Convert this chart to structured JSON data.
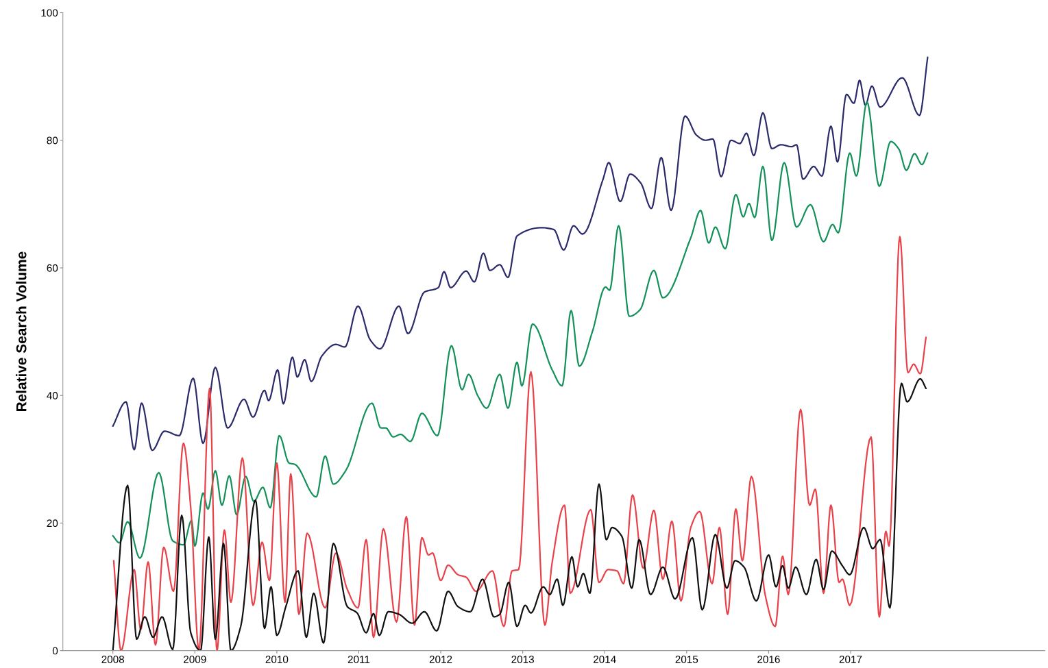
{
  "chart_data": {
    "type": "line",
    "ylabel": "Relative Search Volume",
    "xlim": [
      2007.39,
      2019.37
    ],
    "ylim": [
      0,
      100
    ],
    "xticks": [
      2008,
      2009,
      2010,
      2011,
      2012,
      2013,
      2014,
      2015,
      2016,
      2017
    ],
    "yticks": [
      0,
      20,
      40,
      60,
      80,
      100
    ],
    "grid": false,
    "marker": "none",
    "line_style": "solid",
    "series": [
      {
        "color": "#2b2b6b",
        "x": [
          2008.0,
          2008.16,
          2008.26,
          2008.35,
          2008.48,
          2008.63,
          2008.81,
          2008.98,
          2009.1,
          2009.25,
          2009.4,
          2009.6,
          2009.71,
          2009.85,
          2009.9,
          2010.01,
          2010.08,
          2010.19,
          2010.25,
          2010.34,
          2010.42,
          2010.55,
          2010.72,
          2010.83,
          2010.99,
          2011.14,
          2011.26,
          2011.49,
          2011.6,
          2011.8,
          2011.97,
          2012.04,
          2012.12,
          2012.31,
          2012.41,
          2012.52,
          2012.6,
          2012.72,
          2012.82,
          2012.93,
          2013.23,
          2013.38,
          2013.5,
          2013.62,
          2013.73,
          2013.98,
          2014.05,
          2014.19,
          2014.31,
          2014.44,
          2014.57,
          2014.69,
          2014.81,
          2014.98,
          2015.12,
          2015.23,
          2015.32,
          2015.42,
          2015.54,
          2015.65,
          2015.73,
          2015.82,
          2015.93,
          2016.04,
          2016.15,
          2016.28,
          2016.34,
          2016.42,
          2016.55,
          2016.65,
          2016.76,
          2016.84,
          2016.95,
          2017.04,
          2017.11,
          2017.18,
          2017.26,
          2017.36,
          2017.63,
          2017.84,
          2017.94
        ],
        "values": [
          35.2,
          39,
          31.5,
          38.8,
          31.4,
          34.4,
          33.7,
          42.7,
          32.5,
          44.4,
          34.9,
          39.4,
          36.6,
          40.8,
          39.2,
          44,
          38.7,
          46,
          42.9,
          45.6,
          42.2,
          46.2,
          48,
          47.6,
          54,
          48.7,
          47.3,
          54,
          49.7,
          56.2,
          56.9,
          59.4,
          56.9,
          59.5,
          57.8,
          62.3,
          59.6,
          60.5,
          58.5,
          65,
          66.3,
          66,
          62.8,
          66.6,
          65.3,
          73.9,
          76.5,
          70.4,
          74.7,
          73.3,
          69.3,
          77.3,
          69,
          83.8,
          80.8,
          80,
          80.2,
          74.3,
          80,
          79.5,
          81.1,
          77.6,
          84.3,
          78.7,
          79.3,
          79,
          79.3,
          73.9,
          75.9,
          74.4,
          82.2,
          76.6,
          87.2,
          85.8,
          89.4,
          85.5,
          88.5,
          85.2,
          89.8,
          83.9,
          93
        ]
      },
      {
        "color": "#14915a",
        "x": [
          2008.0,
          2008.08,
          2008.18,
          2008.33,
          2008.56,
          2008.73,
          2008.86,
          2008.96,
          2009.0,
          2009.1,
          2009.16,
          2009.25,
          2009.33,
          2009.42,
          2009.51,
          2009.62,
          2009.72,
          2009.83,
          2009.92,
          2010.03,
          2010.15,
          2010.22,
          2010.48,
          2010.59,
          2010.69,
          2010.84,
          2011.16,
          2011.27,
          2011.33,
          2011.42,
          2011.51,
          2011.63,
          2011.77,
          2011.96,
          2012.13,
          2012.26,
          2012.34,
          2012.45,
          2012.56,
          2012.72,
          2012.82,
          2012.93,
          2012.99,
          2013.12,
          2013.36,
          2013.48,
          2013.59,
          2013.69,
          2013.85,
          2014.01,
          2014.06,
          2014.17,
          2014.3,
          2014.43,
          2014.6,
          2014.71,
          2015.05,
          2015.17,
          2015.27,
          2015.35,
          2015.47,
          2015.6,
          2015.69,
          2015.76,
          2015.83,
          2015.93,
          2016.04,
          2016.19,
          2016.34,
          2016.51,
          2016.67,
          2016.78,
          2016.85,
          2016.99,
          2017.07,
          2017.2,
          2017.35,
          2017.49,
          2017.59,
          2017.68,
          2017.78,
          2017.87,
          2017.94
        ],
        "values": [
          18,
          16.9,
          20.2,
          14.5,
          27.9,
          17.2,
          16.6,
          20.4,
          16.4,
          24.7,
          22.2,
          28.2,
          22.8,
          27.4,
          21.3,
          27.3,
          23.4,
          25.6,
          22.4,
          33.7,
          29.4,
          29.2,
          24.1,
          30.5,
          26.1,
          28.2,
          38.8,
          34.9,
          34.9,
          33.5,
          33.9,
          32.8,
          37.2,
          33.7,
          47.8,
          40.9,
          43.3,
          40,
          38,
          43.3,
          38,
          45.2,
          41.5,
          51.2,
          44,
          41.5,
          53.3,
          44.6,
          50,
          57,
          56.5,
          66.6,
          52.4,
          53.4,
          59.6,
          55.3,
          64.7,
          69,
          63.9,
          66.4,
          63,
          71.5,
          68,
          70.1,
          67.9,
          75.9,
          64.3,
          76.5,
          66.4,
          69.9,
          64.1,
          66.8,
          65.5,
          78,
          74.4,
          86,
          72.8,
          79.8,
          78.6,
          75.3,
          77.9,
          76.2,
          78
        ]
      },
      {
        "color": "#e8424a",
        "x": [
          2008.01,
          2008.1,
          2008.26,
          2008.34,
          2008.43,
          2008.52,
          2008.62,
          2008.74,
          2008.86,
          2008.95,
          2009.05,
          2009.18,
          2009.27,
          2009.36,
          2009.44,
          2009.58,
          2009.71,
          2009.82,
          2009.91,
          2010.0,
          2010.1,
          2010.17,
          2010.27,
          2010.37,
          2010.59,
          2010.72,
          2010.86,
          2010.99,
          2011.09,
          2011.18,
          2011.3,
          2011.46,
          2011.58,
          2011.68,
          2011.77,
          2011.85,
          2011.9,
          2012.0,
          2012.09,
          2012.21,
          2012.31,
          2012.43,
          2012.63,
          2012.77,
          2012.87,
          2012.95,
          2013.1,
          2013.27,
          2013.36,
          2013.51,
          2013.58,
          2013.83,
          2013.93,
          2014.04,
          2014.15,
          2014.23,
          2014.34,
          2014.47,
          2014.6,
          2014.71,
          2014.82,
          2014.93,
          2015.05,
          2015.16,
          2015.31,
          2015.4,
          2015.5,
          2015.6,
          2015.68,
          2015.79,
          2015.96,
          2016.08,
          2016.17,
          2016.24,
          2016.39,
          2016.5,
          2016.57,
          2016.67,
          2016.76,
          2016.86,
          2016.9,
          2016.99,
          2017.25,
          2017.35,
          2017.43,
          2017.47,
          2017.6,
          2017.7,
          2017.77,
          2017.85,
          2017.92
        ],
        "values": [
          14.1,
          0,
          12.7,
          3.3,
          13.9,
          0.9,
          16.2,
          9.3,
          32.5,
          22.4,
          0,
          41.1,
          0,
          18.9,
          7.6,
          30.2,
          7.1,
          17,
          11,
          29.4,
          7.6,
          27.7,
          5.7,
          18.4,
          6.7,
          15.3,
          9.6,
          6.7,
          17.4,
          2.1,
          19.1,
          4.5,
          21,
          4,
          17.7,
          15,
          15.3,
          11,
          13.4,
          11.9,
          11.5,
          9.3,
          12.5,
          3.8,
          12.5,
          12.7,
          43.7,
          4,
          13.9,
          22.8,
          9,
          22.1,
          10.7,
          12.7,
          12.5,
          10.5,
          24.4,
          12.9,
          22,
          11.2,
          20.3,
          7.8,
          19.3,
          21.8,
          10.5,
          19.3,
          5.7,
          22.2,
          14.1,
          27.3,
          8.6,
          3.8,
          14.8,
          8.8,
          37.8,
          22.8,
          25.3,
          9,
          22.8,
          10.7,
          11.2,
          7.1,
          33.5,
          5.3,
          18.7,
          16.4,
          64.9,
          43.6,
          44.9,
          43.4,
          49.1
        ]
      },
      {
        "color": "#111111",
        "x": [
          2008.0,
          2008.18,
          2008.29,
          2008.39,
          2008.49,
          2008.6,
          2008.73,
          2008.84,
          2008.95,
          2009.07,
          2009.17,
          2009.25,
          2009.35,
          2009.44,
          2009.56,
          2009.74,
          2009.85,
          2009.93,
          2010.0,
          2010.11,
          2010.26,
          2010.36,
          2010.45,
          2010.57,
          2010.69,
          2010.86,
          2010.98,
          2011.09,
          2011.18,
          2011.25,
          2011.36,
          2011.49,
          2011.65,
          2011.8,
          2011.95,
          2012.09,
          2012.21,
          2012.36,
          2012.51,
          2012.65,
          2012.72,
          2012.83,
          2012.93,
          2013.03,
          2013.1,
          2013.25,
          2013.33,
          2013.42,
          2013.49,
          2013.6,
          2013.67,
          2013.74,
          2013.82,
          2013.93,
          2014.02,
          2014.09,
          2014.21,
          2014.33,
          2014.42,
          2014.56,
          2014.71,
          2014.86,
          2015.07,
          2015.19,
          2015.35,
          2015.49,
          2015.59,
          2015.7,
          2015.85,
          2016.0,
          2016.09,
          2016.17,
          2016.24,
          2016.33,
          2016.46,
          2016.58,
          2016.67,
          2016.77,
          2016.9,
          2016.99,
          2017.16,
          2017.27,
          2017.36,
          2017.48,
          2017.62,
          2017.69,
          2017.85,
          2017.92
        ],
        "values": [
          0,
          25.9,
          1.8,
          5.3,
          2.1,
          5.3,
          0.2,
          21.2,
          2.8,
          0,
          17.8,
          1.8,
          16.8,
          0,
          3.8,
          23.6,
          3.5,
          10,
          2.4,
          6.9,
          12.5,
          2.1,
          9,
          1.2,
          16.8,
          6.9,
          5.9,
          2.8,
          5.8,
          2.4,
          6.1,
          5.7,
          4.3,
          6.1,
          3.1,
          9.3,
          6.9,
          6.1,
          11.2,
          5.3,
          5.7,
          10.7,
          3.8,
          7.1,
          5.9,
          10,
          8.8,
          11.2,
          7.1,
          14.7,
          10,
          12.1,
          9,
          26.1,
          17.4,
          19.3,
          17.9,
          9.8,
          17.4,
          8.8,
          13.1,
          8.1,
          17.7,
          6.4,
          18.2,
          9.8,
          14.1,
          13.1,
          7.8,
          15,
          10,
          13.3,
          9.8,
          13.1,
          8.8,
          14.3,
          9.6,
          15.6,
          13.3,
          11.9,
          19.3,
          16,
          17.4,
          6.7,
          41.9,
          39,
          42.6,
          41.1
        ]
      }
    ]
  }
}
